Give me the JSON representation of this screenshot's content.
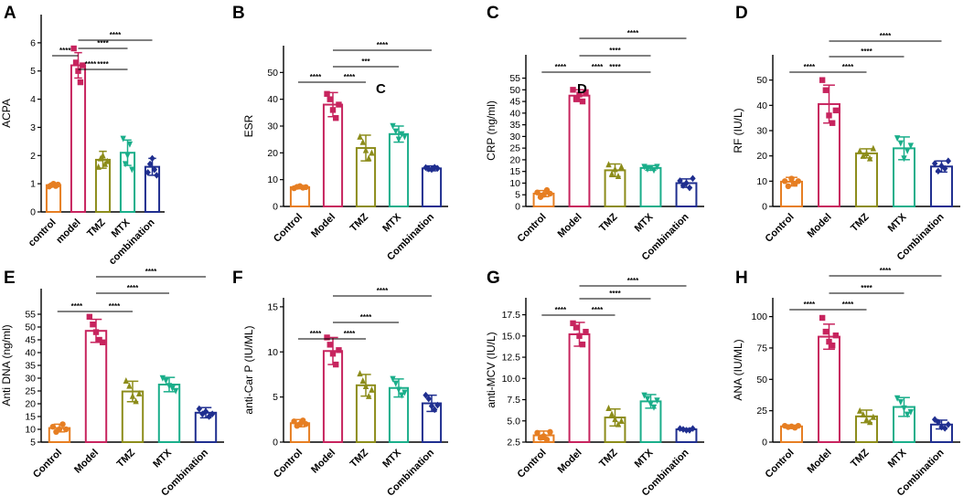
{
  "colors": {
    "Control": "#E67E22",
    "Model": "#C7245E",
    "TMZ": "#8C8C1A",
    "MTX": "#1AAE8A",
    "Combination": "#1F2E8F",
    "axis": "#000000"
  },
  "stray_labels": [
    "C",
    "D"
  ],
  "chart_data": [
    {
      "panel": "A",
      "type": "bar",
      "ylabel": "ACPA",
      "categories": [
        "control",
        "model",
        "TMZ",
        "MTX",
        "combination"
      ],
      "values": [
        0.95,
        5.2,
        1.85,
        2.1,
        1.6
      ],
      "sd": [
        0.05,
        0.45,
        0.3,
        0.45,
        0.3
      ],
      "points": [
        [
          0.9,
          0.95,
          1.0,
          0.92,
          0.97
        ],
        [
          5.8,
          5.3,
          5.0,
          4.6,
          5.2
        ],
        [
          1.6,
          1.9,
          2.0,
          1.7,
          1.8
        ],
        [
          2.6,
          1.7,
          2.0,
          2.4,
          1.5
        ],
        [
          1.4,
          1.7,
          1.9,
          1.5,
          1.3
        ]
      ],
      "ylim": [
        0,
        7
      ],
      "yticks": [
        0,
        1,
        2,
        3,
        4,
        5,
        6
      ],
      "sig": [
        {
          "from": 1,
          "to": 4,
          "label": "****"
        },
        {
          "from": 1,
          "to": 3,
          "label": "****"
        },
        {
          "from": 0,
          "to": 1,
          "label": "****"
        },
        {
          "from": 1,
          "to": 2,
          "label": "****"
        },
        {
          "from": 1,
          "to": 3,
          "label": "****"
        }
      ]
    },
    {
      "panel": "B",
      "type": "bar",
      "ylabel": "ESR",
      "categories": [
        "Control",
        "Model",
        "TMZ",
        "MTX",
        "Combination"
      ],
      "values": [
        7.2,
        38,
        21.8,
        27,
        14.2
      ],
      "sd": [
        0.6,
        4.5,
        4.8,
        3.0,
        0.9
      ],
      "points": [
        [
          6.8,
          7.3,
          7.6,
          7.0,
          7.2
        ],
        [
          42,
          40,
          36,
          33,
          38
        ],
        [
          26,
          24,
          21,
          18,
          20
        ],
        [
          30,
          28,
          25,
          27,
          26
        ],
        [
          14.5,
          14.0,
          13.8,
          14.6,
          14.2
        ]
      ],
      "ylim": [
        0,
        60
      ],
      "yticks": [
        0,
        10,
        20,
        30,
        40,
        50
      ],
      "sig": [
        {
          "from": 1,
          "to": 4,
          "label": "****"
        },
        {
          "from": 1,
          "to": 3,
          "label": "***"
        },
        {
          "from": 0,
          "to": 1,
          "label": "****"
        },
        {
          "from": 1,
          "to": 2,
          "label": "****"
        }
      ]
    },
    {
      "panel": "C",
      "type": "bar",
      "ylabel": "CRP (ng/ml)",
      "categories": [
        "Control",
        "Model",
        "TMZ",
        "MTX",
        "Combination"
      ],
      "values": [
        5.5,
        47.5,
        15.5,
        16.5,
        10
      ],
      "sd": [
        1.3,
        2.5,
        2.7,
        1.0,
        1.8
      ],
      "points": [
        [
          6.0,
          4.0,
          5.0,
          7.0,
          5.5
        ],
        [
          50,
          46,
          48,
          45,
          49
        ],
        [
          18,
          14,
          16,
          13,
          17
        ],
        [
          17,
          16,
          16.5,
          15.5,
          17
        ],
        [
          11,
          9,
          10,
          8,
          12
        ]
      ],
      "ylim": [
        0,
        65
      ],
      "yticks": [
        0,
        5,
        10,
        15,
        20,
        25,
        30,
        35,
        40,
        45,
        50,
        55
      ],
      "sig": [
        {
          "from": 1,
          "to": 4,
          "label": "****"
        },
        {
          "from": 1,
          "to": 3,
          "label": "****"
        },
        {
          "from": 1,
          "to": 3,
          "label": "****"
        },
        {
          "from": 0,
          "to": 1,
          "label": "****"
        },
        {
          "from": 1,
          "to": 2,
          "label": "****"
        }
      ]
    },
    {
      "panel": "D",
      "type": "bar",
      "ylabel": "RF (IU/L)",
      "categories": [
        "Control",
        "Model",
        "TMZ",
        "MTX",
        "Combination"
      ],
      "values": [
        9.8,
        40.5,
        21,
        23,
        15.8
      ],
      "sd": [
        1.7,
        7.5,
        1.8,
        4.5,
        2.2
      ],
      "points": [
        [
          10,
          8,
          11,
          9,
          10
        ],
        [
          50,
          46,
          36,
          33,
          38
        ],
        [
          22,
          20,
          21,
          19,
          23
        ],
        [
          27,
          25,
          19,
          22,
          24
        ],
        [
          17,
          14,
          16,
          15,
          18
        ]
      ],
      "ylim": [
        0,
        60
      ],
      "yticks": [
        0,
        10,
        20,
        30,
        40,
        50
      ],
      "sig": [
        {
          "from": 1,
          "to": 4,
          "label": "****"
        },
        {
          "from": 1,
          "to": 3,
          "label": "****"
        },
        {
          "from": 0,
          "to": 1,
          "label": "****"
        },
        {
          "from": 1,
          "to": 2,
          "label": "****"
        }
      ]
    },
    {
      "panel": "E",
      "type": "bar",
      "ylabel": "Anti DNA (ng/ml)",
      "categories": [
        "Control",
        "Model",
        "TMZ",
        "MTX",
        "Combination"
      ],
      "values": [
        10.5,
        48.5,
        24.8,
        27.5,
        16.5
      ],
      "sd": [
        1.5,
        4.5,
        4.0,
        2.8,
        2.0
      ],
      "points": [
        [
          11,
          9,
          10,
          12,
          10
        ],
        [
          54,
          51,
          48,
          45,
          44
        ],
        [
          29,
          27,
          23,
          21,
          24
        ],
        [
          30,
          29,
          27,
          26,
          25
        ],
        [
          18,
          16,
          17,
          15,
          16
        ]
      ],
      "ylim": [
        5,
        65
      ],
      "yticks": [
        5,
        10,
        15,
        20,
        25,
        30,
        35,
        40,
        45,
        50,
        55
      ],
      "sig": [
        {
          "from": 1,
          "to": 4,
          "label": "****"
        },
        {
          "from": 1,
          "to": 3,
          "label": "****"
        },
        {
          "from": 0,
          "to": 1,
          "label": "****"
        },
        {
          "from": 1,
          "to": 2,
          "label": "****"
        }
      ]
    },
    {
      "panel": "F",
      "type": "bar",
      "ylabel": "anti-Car P (IU/ML)",
      "categories": [
        "Control",
        "Model",
        "TMZ",
        "MTX",
        "Combination"
      ],
      "values": [
        2.1,
        10.1,
        6.3,
        6.0,
        4.3
      ],
      "sd": [
        0.4,
        1.5,
        1.2,
        1.0,
        0.9
      ],
      "points": [
        [
          2.3,
          1.8,
          2.0,
          2.4,
          2.0
        ],
        [
          11.6,
          10.8,
          9.8,
          8.6,
          10.2
        ],
        [
          7.6,
          6.8,
          6.2,
          5.1,
          5.8
        ],
        [
          7.0,
          6.5,
          5.8,
          5.2,
          5.5
        ],
        [
          5.2,
          4.8,
          4.0,
          3.6,
          4.1
        ]
      ],
      "ylim": [
        0,
        16
      ],
      "yticks": [
        0,
        5,
        10,
        15
      ],
      "sig": [
        {
          "from": 1,
          "to": 4,
          "label": "****"
        },
        {
          "from": 1,
          "to": 3,
          "label": "****"
        },
        {
          "from": 0,
          "to": 1,
          "label": "****"
        },
        {
          "from": 1,
          "to": 2,
          "label": "****"
        }
      ]
    },
    {
      "panel": "G",
      "type": "bar",
      "ylabel": "anti-MCV (IU/L)",
      "categories": [
        "Control",
        "Model",
        "TMZ",
        "MTX",
        "Combination"
      ],
      "values": [
        3.3,
        15.2,
        5.4,
        7.3,
        4.0
      ],
      "sd": [
        0.5,
        1.4,
        1.0,
        0.8,
        0.1
      ],
      "points": [
        [
          3.6,
          3.0,
          3.2,
          2.8,
          3.7
        ],
        [
          16.5,
          16.0,
          15.0,
          14.0,
          15.5
        ],
        [
          6.5,
          5.8,
          5.2,
          4.6,
          5.0
        ],
        [
          8.0,
          7.6,
          7.0,
          6.6,
          7.4
        ],
        [
          4.1,
          4.0,
          3.9,
          3.9,
          4.1
        ]
      ],
      "ylim": [
        2.5,
        19.5
      ],
      "yticks": [
        2.5,
        5.0,
        7.5,
        10.0,
        12.5,
        15.0,
        17.5
      ],
      "sig": [
        {
          "from": 1,
          "to": 4,
          "label": "****"
        },
        {
          "from": 1,
          "to": 3,
          "label": "****"
        },
        {
          "from": 0,
          "to": 1,
          "label": "****"
        },
        {
          "from": 1,
          "to": 2,
          "label": "****"
        }
      ]
    },
    {
      "panel": "H",
      "type": "bar",
      "ylabel": "ANA (IU/ML)",
      "categories": [
        "Control",
        "Model",
        "TMZ",
        "MTX",
        "Combination"
      ],
      "values": [
        12.5,
        84,
        20.5,
        28,
        14
      ],
      "sd": [
        1.0,
        10,
        5.0,
        7.5,
        3.5
      ],
      "points": [
        [
          13,
          12,
          12.5,
          11.5,
          13
        ],
        [
          99,
          88,
          80,
          77,
          85
        ],
        [
          25,
          22,
          18,
          16,
          20
        ],
        [
          35,
          32,
          27,
          22,
          24
        ],
        [
          18,
          16,
          12,
          11,
          14
        ]
      ],
      "ylim": [
        0,
        115
      ],
      "yticks": [
        0,
        25,
        50,
        75,
        100
      ],
      "sig": [
        {
          "from": 1,
          "to": 4,
          "label": "****"
        },
        {
          "from": 1,
          "to": 3,
          "label": "****"
        },
        {
          "from": 0,
          "to": 1,
          "label": "****"
        },
        {
          "from": 1,
          "to": 2,
          "label": "****"
        }
      ]
    }
  ]
}
